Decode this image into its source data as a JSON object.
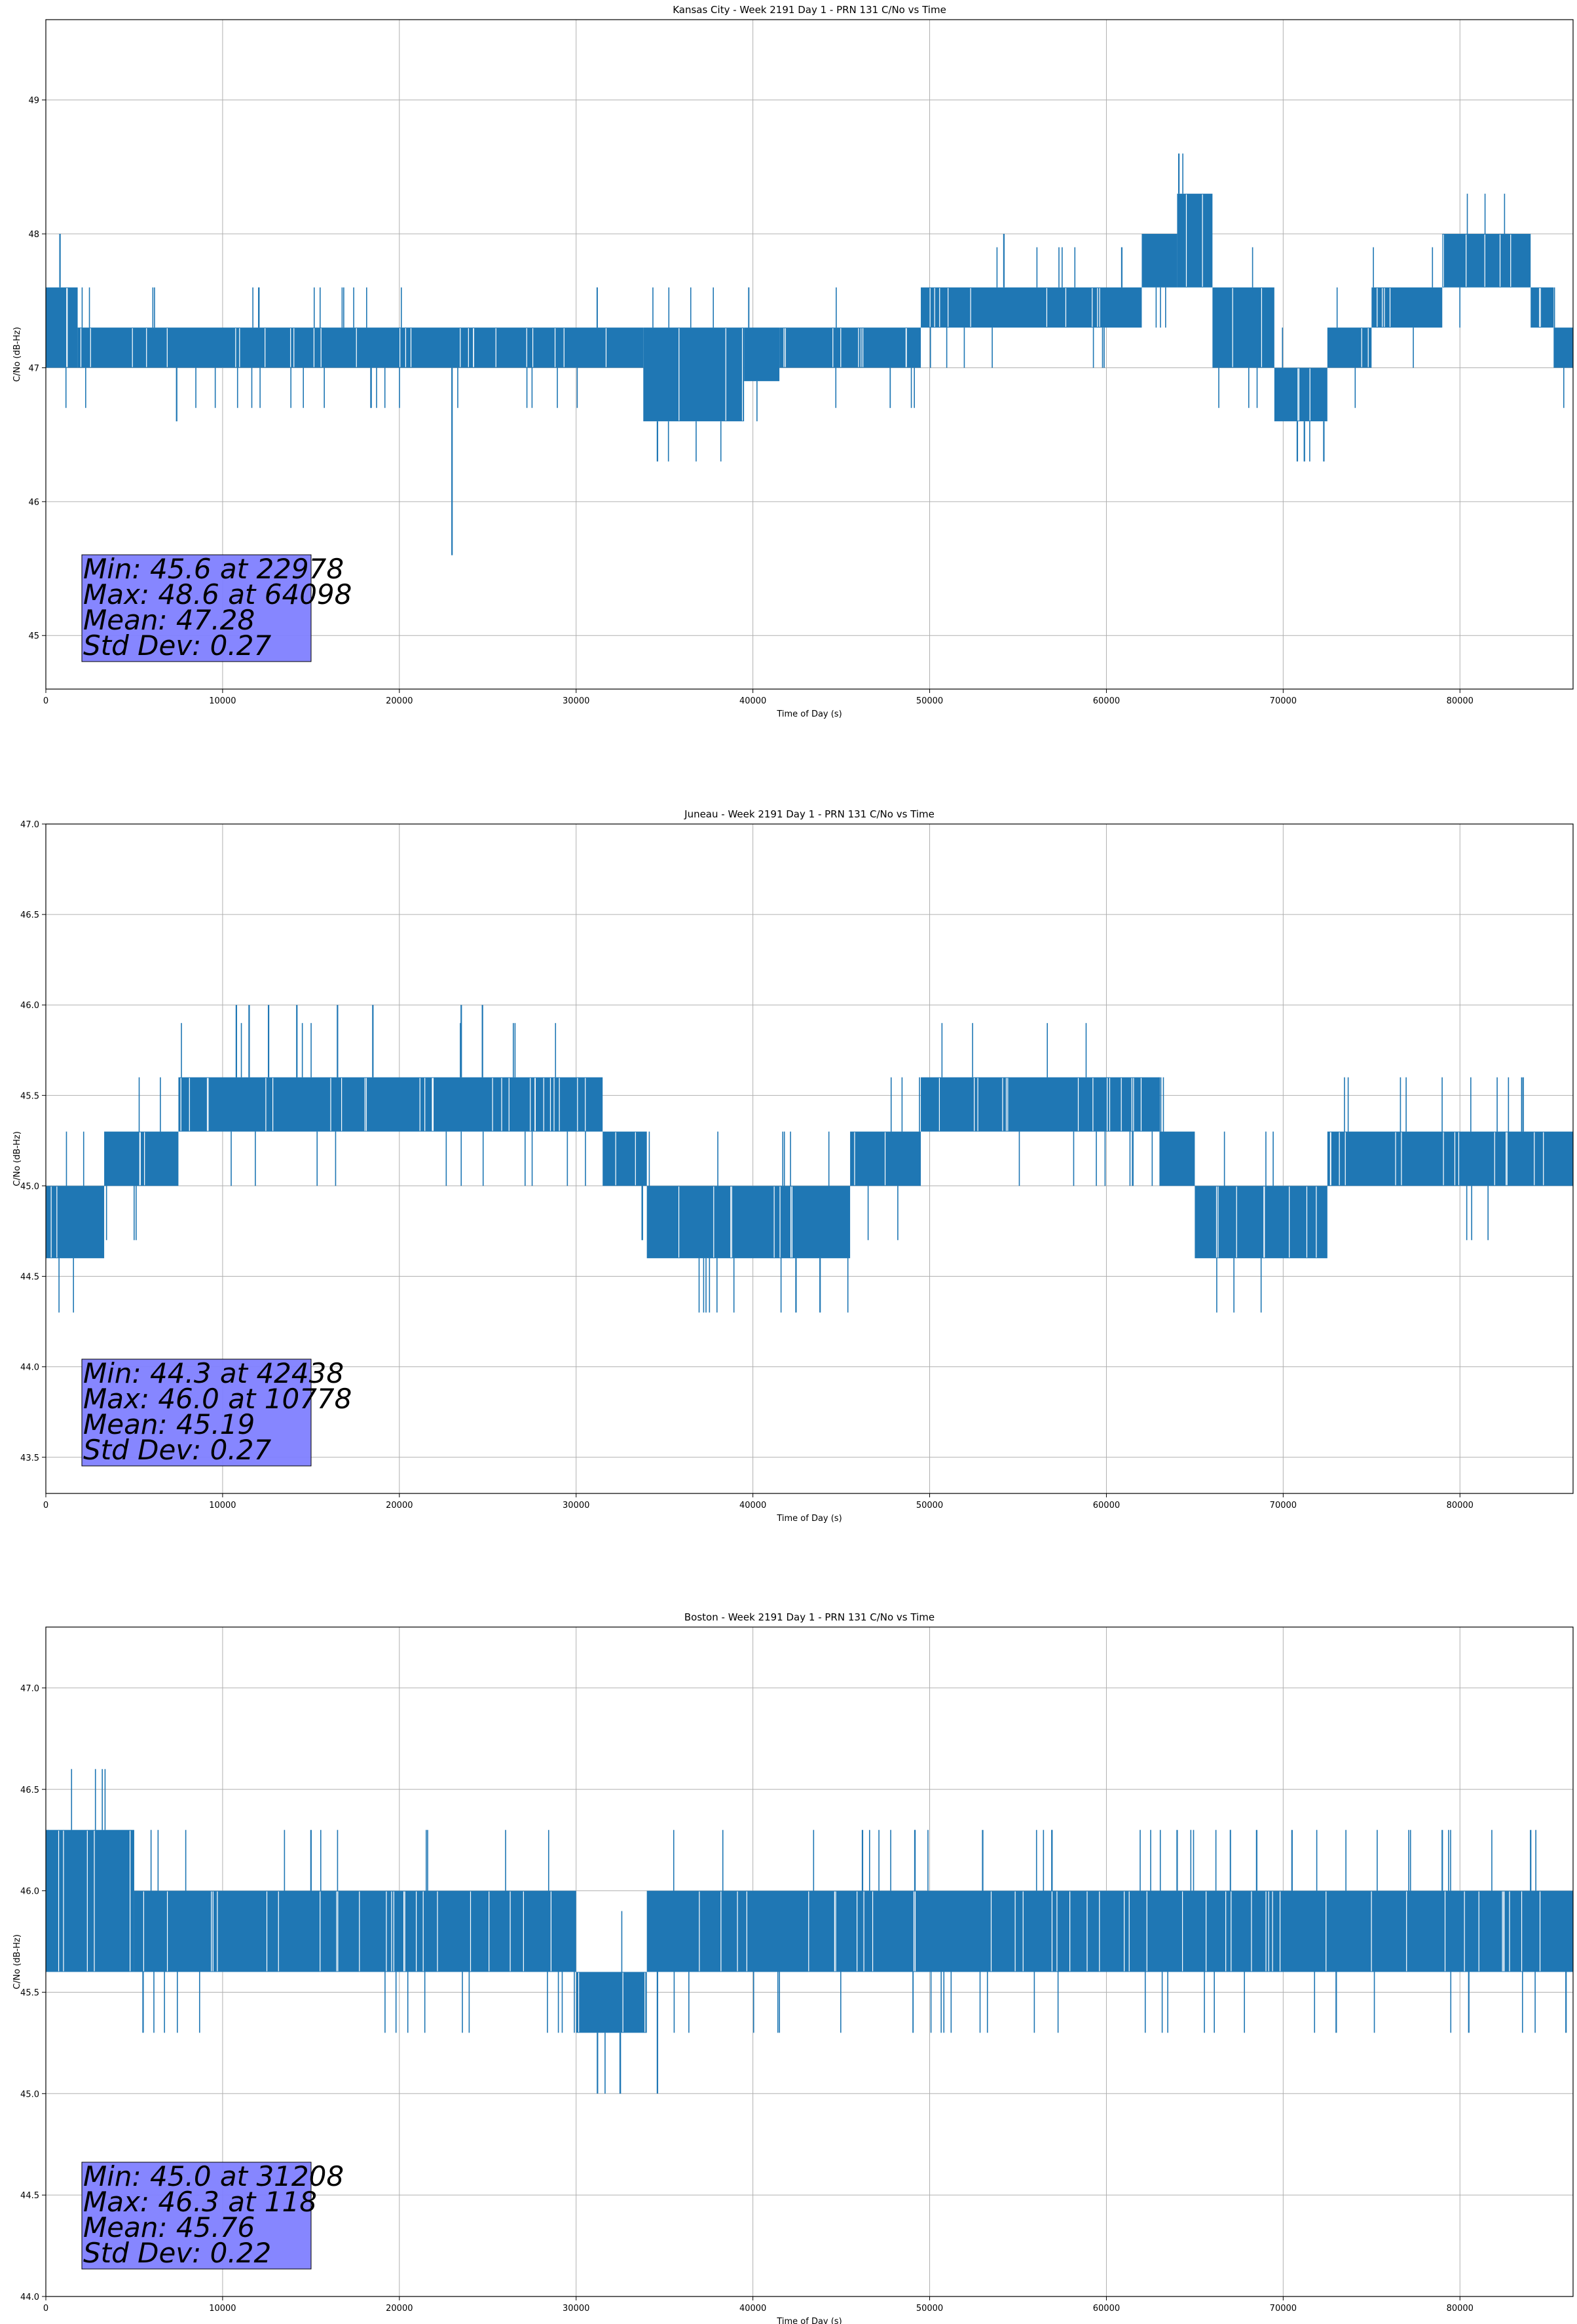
{
  "chart_data": [
    {
      "type": "line",
      "title": "Kansas City - Week 2191 Day 1 - PRN 131 C/No vs Time",
      "xlabel": "Time of Day (s)",
      "ylabel": "C/No (dB-Hz)",
      "xlim": [
        0,
        86400
      ],
      "ylim": [
        44.6,
        49.6
      ],
      "xticks": [
        0,
        10000,
        20000,
        30000,
        40000,
        50000,
        60000,
        70000,
        80000
      ],
      "xtick_labels": [
        "0",
        "10000",
        "20000",
        "30000",
        "40000",
        "50000",
        "60000",
        "70000",
        "80000"
      ],
      "yticks": [
        45,
        46,
        47,
        48,
        49
      ],
      "ytick_labels": [
        "45",
        "46",
        "47",
        "48",
        "49"
      ],
      "grid": true,
      "color": "#1f77b4",
      "series": [
        {
          "name": "C/No",
          "band_segments": [
            {
              "x0": 0,
              "x1": 1800,
              "lo": 47.0,
              "hi": 47.6
            },
            {
              "x0": 1800,
              "x1": 33800,
              "lo": 47.0,
              "hi": 47.3
            },
            {
              "x0": 33800,
              "x1": 39500,
              "lo": 46.6,
              "hi": 47.3
            },
            {
              "x0": 39500,
              "x1": 41500,
              "lo": 46.9,
              "hi": 47.3
            },
            {
              "x0": 41500,
              "x1": 49500,
              "lo": 47.0,
              "hi": 47.3
            },
            {
              "x0": 49500,
              "x1": 62000,
              "lo": 47.3,
              "hi": 47.6
            },
            {
              "x0": 62000,
              "x1": 64000,
              "lo": 47.6,
              "hi": 48.0
            },
            {
              "x0": 64000,
              "x1": 66000,
              "lo": 47.6,
              "hi": 48.3
            },
            {
              "x0": 66000,
              "x1": 69500,
              "lo": 47.0,
              "hi": 47.6
            },
            {
              "x0": 69500,
              "x1": 72500,
              "lo": 46.6,
              "hi": 47.0
            },
            {
              "x0": 72500,
              "x1": 75000,
              "lo": 47.0,
              "hi": 47.3
            },
            {
              "x0": 75000,
              "x1": 79000,
              "lo": 47.3,
              "hi": 47.6
            },
            {
              "x0": 79000,
              "x1": 84000,
              "lo": 47.6,
              "hi": 48.0
            },
            {
              "x0": 84000,
              "x1": 85300,
              "lo": 47.3,
              "hi": 47.6
            },
            {
              "x0": 85300,
              "x1": 86400,
              "lo": 47.0,
              "hi": 47.3
            }
          ],
          "spikes": [
            {
              "x": 7400,
              "y": 46.6
            },
            {
              "x": 22978,
              "y": 45.6
            },
            {
              "x": 34600,
              "y": 46.3
            },
            {
              "x": 54200,
              "y": 48.0
            },
            {
              "x": 64098,
              "y": 48.6
            },
            {
              "x": 70800,
              "y": 46.3
            },
            {
              "x": 71200,
              "y": 46.3
            },
            {
              "x": 72300,
              "y": 46.3
            },
            {
              "x": 800,
              "y": 48.0
            }
          ]
        }
      ],
      "stats": {
        "min_text": "Min: 45.6 at 22978",
        "max_text": "Max: 48.6 at 64098",
        "mean_text": "Mean: 47.28",
        "std_text": "Std Dev: 0.27"
      },
      "stats_box_color": "#8080ff"
    },
    {
      "type": "line",
      "title": "Juneau - Week 2191 Day 1 - PRN 131 C/No vs Time",
      "xlabel": "Time of Day (s)",
      "ylabel": "C/No (dB-Hz)",
      "xlim": [
        0,
        86400
      ],
      "ylim": [
        43.3,
        47.0
      ],
      "xticks": [
        0,
        10000,
        20000,
        30000,
        40000,
        50000,
        60000,
        70000,
        80000
      ],
      "xtick_labels": [
        "0",
        "10000",
        "20000",
        "30000",
        "40000",
        "50000",
        "60000",
        "70000",
        "80000"
      ],
      "yticks": [
        43.5,
        44.0,
        44.5,
        45.0,
        45.5,
        46.0,
        46.5,
        47.0
      ],
      "ytick_labels": [
        "43.5",
        "44.0",
        "44.5",
        "45.0",
        "45.5",
        "46.0",
        "46.5",
        "47.0"
      ],
      "grid": true,
      "color": "#1f77b4",
      "series": [
        {
          "name": "C/No",
          "band_segments": [
            {
              "x0": 0,
              "x1": 3300,
              "lo": 44.6,
              "hi": 45.0
            },
            {
              "x0": 3300,
              "x1": 7500,
              "lo": 45.0,
              "hi": 45.3
            },
            {
              "x0": 7500,
              "x1": 31500,
              "lo": 45.3,
              "hi": 45.6
            },
            {
              "x0": 31500,
              "x1": 34000,
              "lo": 45.0,
              "hi": 45.3
            },
            {
              "x0": 34000,
              "x1": 45500,
              "lo": 44.6,
              "hi": 45.0
            },
            {
              "x0": 45500,
              "x1": 49500,
              "lo": 45.0,
              "hi": 45.3
            },
            {
              "x0": 49500,
              "x1": 63000,
              "lo": 45.3,
              "hi": 45.6
            },
            {
              "x0": 63000,
              "x1": 65000,
              "lo": 45.0,
              "hi": 45.3
            },
            {
              "x0": 65000,
              "x1": 72500,
              "lo": 44.6,
              "hi": 45.0
            },
            {
              "x0": 72500,
              "x1": 86400,
              "lo": 45.0,
              "hi": 45.3
            }
          ],
          "spikes": [
            {
              "x": 10778,
              "y": 46.0
            },
            {
              "x": 11500,
              "y": 46.0
            },
            {
              "x": 12600,
              "y": 46.0
            },
            {
              "x": 14200,
              "y": 46.0
            },
            {
              "x": 16500,
              "y": 46.0
            },
            {
              "x": 18500,
              "y": 46.0
            },
            {
              "x": 23500,
              "y": 46.0
            },
            {
              "x": 24700,
              "y": 46.0
            },
            {
              "x": 42438,
              "y": 44.3
            },
            {
              "x": 43800,
              "y": 44.3
            },
            {
              "x": 83500,
              "y": 45.6
            }
          ]
        }
      ],
      "stats": {
        "min_text": "Min: 44.3 at 42438",
        "max_text": "Max: 46.0 at 10778",
        "mean_text": "Mean: 45.19",
        "std_text": "Std Dev: 0.27"
      },
      "stats_box_color": "#8080ff"
    },
    {
      "type": "line",
      "title": "Boston - Week 2191 Day 1 - PRN 131 C/No vs Time",
      "xlabel": "Time of Day (s)",
      "ylabel": "C/No (dB-Hz)",
      "xlim": [
        0,
        86400
      ],
      "ylim": [
        44.0,
        47.3
      ],
      "xticks": [
        0,
        10000,
        20000,
        30000,
        40000,
        50000,
        60000,
        70000,
        80000
      ],
      "xtick_labels": [
        "0",
        "10000",
        "20000",
        "30000",
        "40000",
        "50000",
        "60000",
        "70000",
        "80000"
      ],
      "yticks": [
        44.0,
        44.5,
        45.0,
        45.5,
        46.0,
        46.5,
        47.0
      ],
      "ytick_labels": [
        "44.0",
        "44.5",
        "45.0",
        "45.5",
        "46.0",
        "46.5",
        "47.0"
      ],
      "grid": true,
      "color": "#1f77b4",
      "series": [
        {
          "name": "C/No",
          "band_segments": [
            {
              "x0": 0,
              "x1": 5000,
              "lo": 45.6,
              "hi": 46.3
            },
            {
              "x0": 5000,
              "x1": 30000,
              "lo": 45.6,
              "hi": 46.0
            },
            {
              "x0": 30000,
              "x1": 34000,
              "lo": 45.3,
              "hi": 45.6
            },
            {
              "x0": 34000,
              "x1": 86400,
              "lo": 45.6,
              "hi": 46.0
            }
          ],
          "spikes": [
            {
              "x": 118,
              "y": 46.3
            },
            {
              "x": 15000,
              "y": 46.3
            },
            {
              "x": 31208,
              "y": 45.0
            },
            {
              "x": 34600,
              "y": 45.0
            },
            {
              "x": 46200,
              "y": 46.3
            },
            {
              "x": 53000,
              "y": 46.3
            },
            {
              "x": 64000,
              "y": 46.3
            },
            {
              "x": 68500,
              "y": 46.3
            },
            {
              "x": 70500,
              "y": 46.3
            },
            {
              "x": 79000,
              "y": 46.3
            },
            {
              "x": 84000,
              "y": 46.3
            },
            {
              "x": 5500,
              "y": 45.3
            },
            {
              "x": 73000,
              "y": 45.3
            },
            {
              "x": 80500,
              "y": 45.3
            },
            {
              "x": 86000,
              "y": 45.3
            }
          ]
        }
      ],
      "stats": {
        "min_text": "Min: 45.0 at 31208",
        "max_text": "Max: 46.3 at 118",
        "mean_text": "Mean: 45.76",
        "std_text": "Std Dev: 0.22"
      },
      "stats_box_color": "#8080ff"
    }
  ]
}
